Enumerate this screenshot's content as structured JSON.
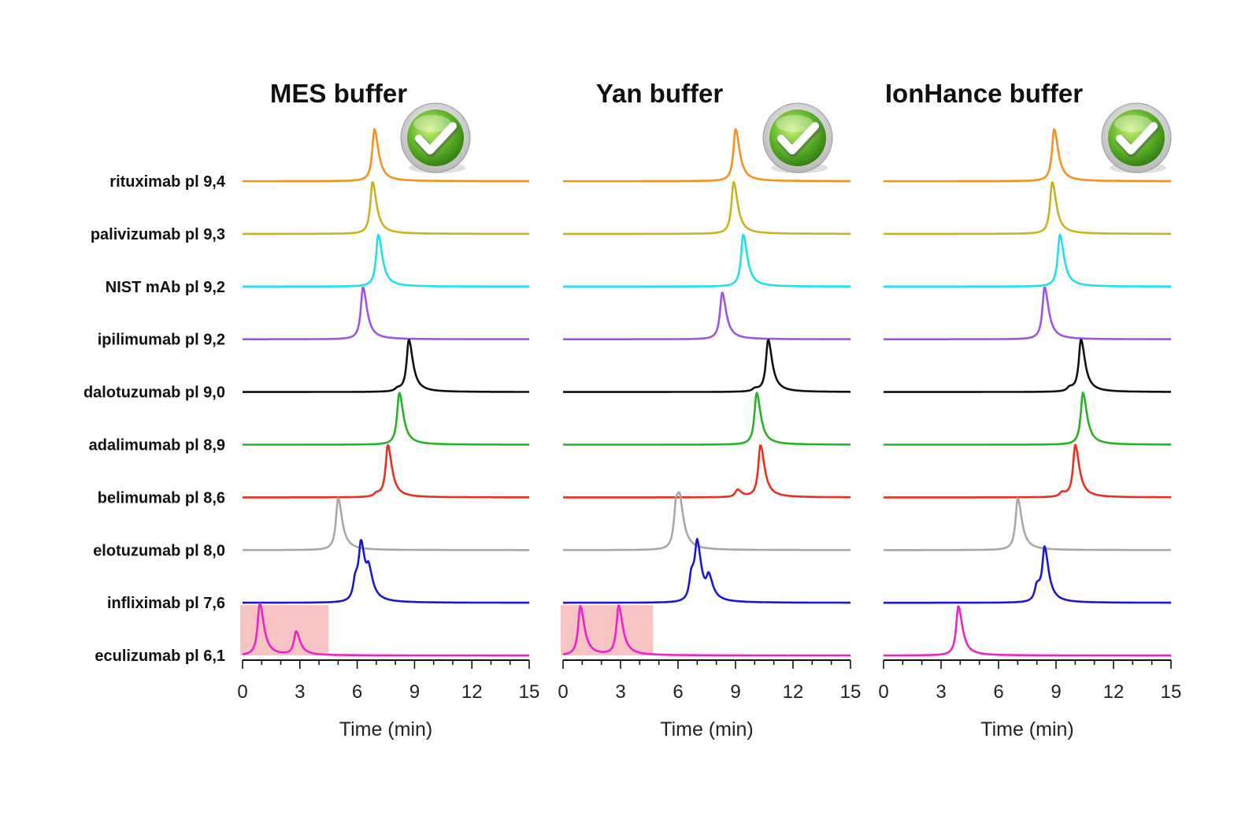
{
  "chart_data": {
    "type": "line",
    "xlabel": "Time (min)",
    "xlim": [
      0,
      15
    ],
    "xticks": [
      0,
      3,
      6,
      9,
      12,
      15
    ],
    "panels": [
      {
        "title": "MES buffer",
        "approved": true,
        "shaded_region": [
          0,
          4.5
        ]
      },
      {
        "title": "Yan buffer",
        "approved": true,
        "shaded_region": [
          0,
          4.7
        ]
      },
      {
        "title": "IonHance buffer",
        "approved": true,
        "shaded_region": null
      }
    ],
    "series": [
      {
        "name": "rituximab pI 9,4",
        "label": "rituximab pl 9,4",
        "color": "#f5921e",
        "peaks": [
          [
            [
              6.9,
              1.0
            ]
          ],
          [
            [
              9.0,
              1.0
            ]
          ],
          [
            [
              8.9,
              1.0
            ]
          ]
        ]
      },
      {
        "name": "palivizumab pI 9,3",
        "label": "palivizumab pl 9,3",
        "color": "#c9b420",
        "peaks": [
          [
            [
              6.8,
              1.0
            ]
          ],
          [
            [
              8.9,
              1.0
            ]
          ],
          [
            [
              8.8,
              1.0
            ]
          ]
        ]
      },
      {
        "name": "NIST mAb pI 9,2",
        "label": "NIST mAb pl 9,2",
        "color": "#1ee0ee",
        "peaks": [
          [
            [
              7.1,
              1.0
            ]
          ],
          [
            [
              9.4,
              1.0
            ]
          ],
          [
            [
              9.2,
              1.0
            ]
          ]
        ]
      },
      {
        "name": "ipilimumab pI 9,2",
        "label": "ipilimumab pl 9,2",
        "color": "#9c55e8",
        "peaks": [
          [
            [
              6.3,
              1.0
            ]
          ],
          [
            [
              8.3,
              0.9
            ]
          ],
          [
            [
              8.4,
              1.0
            ]
          ]
        ]
      },
      {
        "name": "dalotuzumab pI 9,0",
        "label": "dalotuzumab pl 9,0",
        "color": "#111111",
        "peaks": [
          [
            [
              8.7,
              1.0
            ],
            [
              8.1,
              0.05
            ]
          ],
          [
            [
              10.7,
              1.0
            ],
            [
              10.0,
              0.05
            ]
          ],
          [
            [
              10.3,
              1.0
            ],
            [
              9.7,
              0.07
            ]
          ]
        ]
      },
      {
        "name": "adalimumab pI 8,9",
        "label": "adalimumab pl 8,9",
        "color": "#27b227",
        "peaks": [
          [
            [
              8.2,
              1.0
            ]
          ],
          [
            [
              10.1,
              1.0
            ]
          ],
          [
            [
              10.4,
              1.0
            ]
          ]
        ]
      },
      {
        "name": "belimumab pI 8,6",
        "label": "belimumab pl 8,6",
        "color": "#e83020",
        "peaks": [
          [
            [
              7.6,
              1.0
            ],
            [
              7.0,
              0.06
            ]
          ],
          [
            [
              10.3,
              1.0
            ],
            [
              9.1,
              0.14
            ]
          ],
          [
            [
              10.0,
              1.0
            ],
            [
              9.3,
              0.08
            ]
          ]
        ]
      },
      {
        "name": "elotuzumab pI 8,0",
        "label": "elotuzumab pl 8,0",
        "color": "#a8a8a8",
        "peaks": [
          [
            [
              5.0,
              1.0
            ]
          ],
          [
            [
              5.9,
              0.85
            ],
            [
              6.1,
              0.55
            ]
          ],
          [
            [
              7.0,
              1.0
            ]
          ]
        ]
      },
      {
        "name": "infliximab pI 7,6",
        "label": "infliximab pl 7,6",
        "color": "#1a1acc",
        "peaks": [
          [
            [
              6.2,
              1.0
            ],
            [
              5.9,
              0.4
            ],
            [
              6.6,
              0.45
            ]
          ],
          [
            [
              7.0,
              1.0
            ],
            [
              6.7,
              0.5
            ],
            [
              7.6,
              0.4
            ]
          ],
          [
            [
              8.4,
              1.0
            ],
            [
              8.0,
              0.3
            ]
          ]
        ]
      },
      {
        "name": "eculizumab pI 6,1",
        "label": "eculizumab pl 6,1",
        "color": "#ee22cc",
        "peaks": [
          [
            [
              0.9,
              1.0
            ],
            [
              2.8,
              0.45
            ]
          ],
          [
            [
              0.9,
              0.95
            ],
            [
              2.9,
              0.95
            ]
          ],
          [
            [
              3.9,
              0.95
            ]
          ]
        ]
      }
    ]
  }
}
